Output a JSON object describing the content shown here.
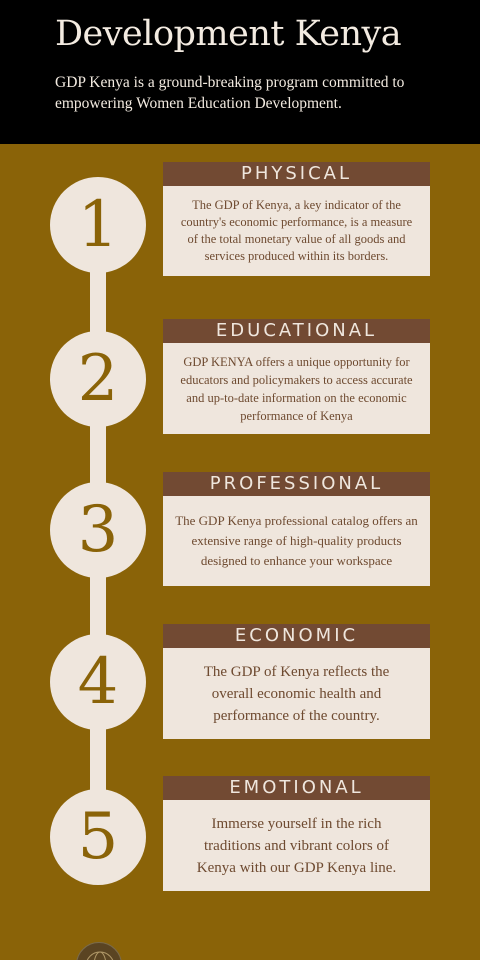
{
  "header": {
    "title": "Development Kenya",
    "subtitle": "GDP Kenya is a ground-breaking program committed to empowering Women Education Development."
  },
  "steps": [
    {
      "number": "1",
      "title": "PHYSICAL",
      "text": "The GDP of Kenya, a key indicator of the country's economic performance, is a measure of the total monetary value of all goods and services produced within its borders."
    },
    {
      "number": "2",
      "title": "EDUCATIONAL",
      "text": "GDP KENYA offers a unique opportunity for educators and policymakers to access accurate and up-to-date information on the economic performance of Kenya"
    },
    {
      "number": "3",
      "title": "PROFESSIONAL",
      "text": "The GDP Kenya professional catalog offers an extensive range of high-quality products designed to enhance your workspace"
    },
    {
      "number": "4",
      "title": "ECONOMIC",
      "text": "The GDP of Kenya reflects the overall economic health and performance of the country."
    },
    {
      "number": "5",
      "title": "EMOTIONAL",
      "text": "Immerse yourself in the rich traditions and vibrant colors of Kenya with our GDP Kenya line."
    }
  ],
  "colors": {
    "background": "#8a6308",
    "header_background": "#000000",
    "card_header": "#724a33",
    "card_body": "#efe6dd"
  }
}
